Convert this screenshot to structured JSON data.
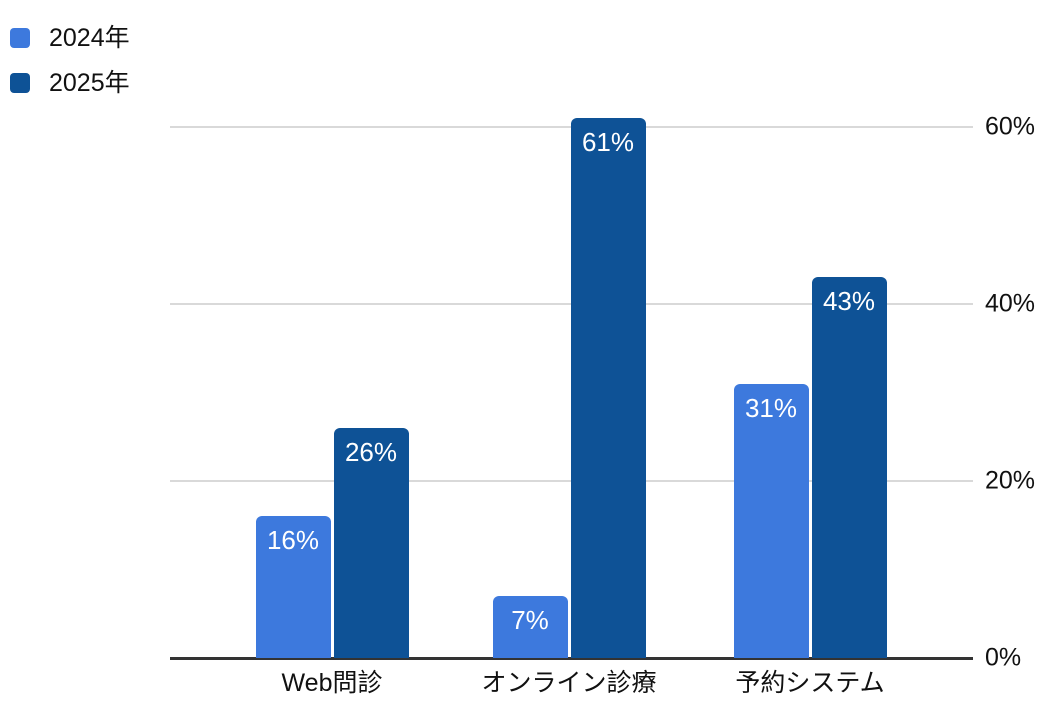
{
  "chart_data": {
    "type": "bar",
    "title": "",
    "categories": [
      "Web問診",
      "オンライン診療",
      "予約システム"
    ],
    "series": [
      {
        "name": "2024年",
        "color": "#3d79dd",
        "values": [
          16,
          7,
          31
        ]
      },
      {
        "name": "2025年",
        "color": "#0e5296",
        "values": [
          26,
          61,
          43
        ]
      }
    ],
    "value_suffix": "%",
    "value_label_color": "#ffffff",
    "y_ticks": [
      0,
      20,
      40,
      60
    ],
    "y_tick_suffix": "%",
    "ylim": [
      0,
      60
    ],
    "grid": true,
    "gridline_color": "#d9d9d9",
    "axis_line_color": "#333333",
    "legend_position": "top-left",
    "y_axis_position": "right"
  }
}
